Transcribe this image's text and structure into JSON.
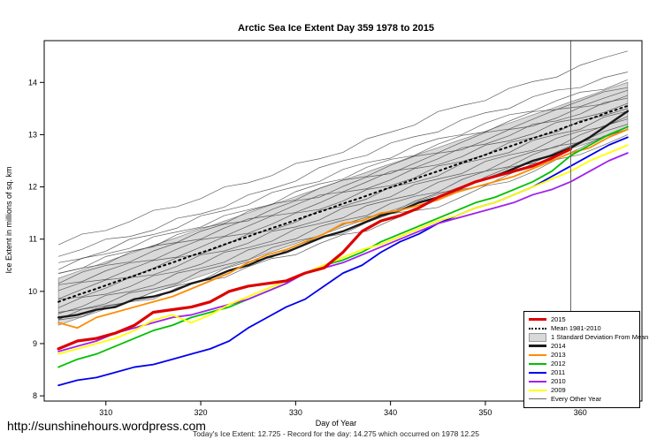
{
  "title": "Arctic Sea Ice Extent Day 359 1978 to 2015",
  "footer": {
    "url": "http://sunshinehours.wordpress.com",
    "caption": "Today's Ice Extent: 12.725  - Record for the day: 14.275 which occurred on 1978 12.25"
  },
  "chart_data": {
    "type": "line",
    "title": "Arctic Sea Ice Extent Day 359 1978 to 2015",
    "xlabel": "Day of Year",
    "ylabel": "Ice Extent in millions of sq. km",
    "xlim": [
      303.5,
      366.5
    ],
    "ylim": [
      7.9,
      14.8
    ],
    "xticks": [
      310,
      320,
      330,
      340,
      350,
      360
    ],
    "yticks": [
      8,
      9,
      10,
      11,
      12,
      13,
      14
    ],
    "marker_day": 359,
    "grid": false,
    "legend_position": "bottom-right-inside",
    "x": [
      305,
      307,
      309,
      311,
      313,
      315,
      317,
      319,
      321,
      323,
      325,
      327,
      329,
      331,
      333,
      335,
      337,
      339,
      341,
      343,
      345,
      347,
      349,
      351,
      353,
      355,
      357,
      359,
      361,
      363,
      365
    ],
    "band": {
      "name": "1 Standard Deviation From Mean",
      "color": "#d9d9d9",
      "upper": [
        10.25,
        10.38,
        10.5,
        10.63,
        10.75,
        10.88,
        11.0,
        11.13,
        11.25,
        11.38,
        11.5,
        11.63,
        11.75,
        11.88,
        12.0,
        12.13,
        12.25,
        12.38,
        12.5,
        12.63,
        12.75,
        12.88,
        13.0,
        13.13,
        13.25,
        13.38,
        13.5,
        13.63,
        13.75,
        13.88,
        14.0
      ],
      "lower": [
        9.35,
        9.48,
        9.6,
        9.73,
        9.85,
        9.98,
        10.1,
        10.23,
        10.35,
        10.48,
        10.6,
        10.73,
        10.85,
        10.98,
        11.1,
        11.23,
        11.35,
        11.48,
        11.6,
        11.73,
        11.85,
        11.98,
        12.1,
        12.23,
        12.35,
        12.48,
        12.6,
        12.73,
        12.85,
        12.98,
        13.1
      ]
    },
    "series": [
      {
        "name": "Mean 1981-2010",
        "color": "#000000",
        "width": 2,
        "dash": "2,4",
        "values": [
          9.8,
          9.93,
          10.05,
          10.18,
          10.3,
          10.43,
          10.55,
          10.68,
          10.8,
          10.93,
          11.05,
          11.18,
          11.3,
          11.43,
          11.55,
          11.68,
          11.8,
          11.93,
          12.05,
          12.18,
          12.3,
          12.43,
          12.55,
          12.68,
          12.8,
          12.93,
          13.05,
          13.18,
          13.3,
          13.43,
          13.55
        ]
      },
      {
        "name": "2014",
        "color": "#1a1a1a",
        "width": 2.4,
        "dash": null,
        "values": [
          9.5,
          9.55,
          9.65,
          9.7,
          9.85,
          9.9,
          10.0,
          10.15,
          10.25,
          10.4,
          10.5,
          10.65,
          10.75,
          10.9,
          11.05,
          11.15,
          11.3,
          11.45,
          11.55,
          11.7,
          11.8,
          11.95,
          12.1,
          12.2,
          12.35,
          12.5,
          12.6,
          12.75,
          12.95,
          13.2,
          13.45
        ]
      },
      {
        "name": "2013",
        "color": "#ff8c00",
        "width": 1.8,
        "dash": null,
        "values": [
          9.4,
          9.3,
          9.5,
          9.6,
          9.7,
          9.8,
          9.9,
          10.05,
          10.2,
          10.35,
          10.55,
          10.7,
          10.8,
          10.95,
          11.1,
          11.3,
          11.35,
          11.5,
          11.55,
          11.65,
          11.75,
          11.9,
          12.0,
          12.1,
          12.2,
          12.35,
          12.5,
          12.65,
          12.75,
          12.95,
          13.1
        ]
      },
      {
        "name": "2012",
        "color": "#00c000",
        "width": 1.8,
        "dash": null,
        "values": [
          8.55,
          8.7,
          8.8,
          8.95,
          9.1,
          9.25,
          9.35,
          9.5,
          9.6,
          9.7,
          9.85,
          10.0,
          10.15,
          10.35,
          10.5,
          10.6,
          10.75,
          10.95,
          11.1,
          11.25,
          11.4,
          11.55,
          11.7,
          11.8,
          11.95,
          12.1,
          12.3,
          12.6,
          12.8,
          13.0,
          13.15
        ]
      },
      {
        "name": "2011",
        "color": "#0000ee",
        "width": 1.8,
        "dash": null,
        "values": [
          8.2,
          8.3,
          8.35,
          8.45,
          8.55,
          8.6,
          8.7,
          8.8,
          8.9,
          9.05,
          9.3,
          9.5,
          9.7,
          9.85,
          10.1,
          10.35,
          10.5,
          10.75,
          10.95,
          11.1,
          11.3,
          11.45,
          11.6,
          11.7,
          11.85,
          12.0,
          12.2,
          12.4,
          12.6,
          12.8,
          12.95
        ]
      },
      {
        "name": "2010",
        "color": "#a020f0",
        "width": 1.8,
        "dash": null,
        "values": [
          8.85,
          8.95,
          9.05,
          9.2,
          9.3,
          9.4,
          9.5,
          9.55,
          9.65,
          9.75,
          9.85,
          10.0,
          10.15,
          10.35,
          10.45,
          10.55,
          10.7,
          10.85,
          11.0,
          11.15,
          11.3,
          11.4,
          11.5,
          11.6,
          11.7,
          11.85,
          11.95,
          12.1,
          12.3,
          12.5,
          12.65
        ]
      },
      {
        "name": "2009",
        "color": "#ffff00",
        "width": 1.8,
        "dash": null,
        "values": [
          8.8,
          8.9,
          9.0,
          9.1,
          9.25,
          9.45,
          9.55,
          9.4,
          9.55,
          9.75,
          9.9,
          10.05,
          10.2,
          10.35,
          10.5,
          10.65,
          10.8,
          10.9,
          11.05,
          11.2,
          11.35,
          11.45,
          11.6,
          11.7,
          11.85,
          12.0,
          12.15,
          12.3,
          12.5,
          12.65,
          12.8
        ]
      },
      {
        "name": "2015",
        "color": "#dd0000",
        "width": 3.2,
        "dash": null,
        "values": [
          8.9,
          9.05,
          9.1,
          9.2,
          9.35,
          9.6,
          9.65,
          9.7,
          9.8,
          10.0,
          10.1,
          10.15,
          10.2,
          10.35,
          10.45,
          10.75,
          11.15,
          11.35,
          11.45,
          11.6,
          11.8,
          11.95,
          12.1,
          12.2,
          12.3,
          12.4,
          12.55,
          12.725,
          null,
          null,
          null
        ]
      }
    ],
    "other_years": {
      "name": "Every Other Year",
      "color": "#444444",
      "x": [
        305,
        315,
        325,
        335,
        345,
        355,
        365
      ],
      "lines": [
        [
          10.9,
          11.5,
          12.1,
          12.7,
          13.4,
          14.0,
          14.6
        ],
        [
          10.7,
          11.2,
          11.8,
          12.5,
          13.1,
          13.7,
          14.2
        ],
        [
          10.5,
          11.1,
          11.7,
          12.3,
          12.9,
          13.5,
          14.05
        ],
        [
          10.45,
          11.0,
          11.55,
          12.2,
          12.8,
          13.4,
          13.9
        ],
        [
          10.35,
          10.9,
          11.5,
          12.1,
          12.7,
          13.3,
          13.85
        ],
        [
          10.3,
          10.85,
          11.4,
          12.0,
          12.6,
          13.2,
          13.75
        ],
        [
          10.2,
          10.75,
          11.35,
          11.95,
          12.55,
          13.15,
          13.7
        ],
        [
          10.1,
          10.65,
          11.25,
          11.85,
          12.45,
          13.05,
          13.6
        ],
        [
          10.0,
          10.55,
          11.15,
          11.75,
          12.35,
          12.95,
          13.5
        ],
        [
          9.9,
          10.45,
          11.05,
          11.65,
          12.25,
          12.85,
          13.45
        ],
        [
          9.8,
          10.35,
          10.95,
          11.55,
          12.15,
          12.75,
          13.35
        ],
        [
          9.7,
          10.25,
          10.85,
          11.45,
          12.05,
          12.65,
          13.3
        ],
        [
          9.6,
          10.15,
          10.75,
          11.35,
          11.95,
          12.6,
          13.2
        ],
        [
          9.55,
          10.05,
          10.65,
          11.25,
          11.85,
          12.5,
          13.15
        ],
        [
          9.5,
          9.95,
          10.55,
          11.15,
          11.75,
          12.4,
          13.1
        ],
        [
          9.45,
          9.9,
          10.45,
          11.05,
          11.65,
          12.3,
          13.0
        ]
      ]
    },
    "legend": [
      {
        "label": "2015",
        "swatch": "line",
        "color": "#dd0000",
        "thick": 3
      },
      {
        "label": "Mean 1981-2010",
        "swatch": "dashed",
        "color": "#000000",
        "thick": 2
      },
      {
        "label": "1 Standard Deviation From Mean",
        "swatch": "band",
        "color": "#d9d9d9",
        "thick": 8
      },
      {
        "label": "2014",
        "swatch": "line",
        "color": "#1a1a1a",
        "thick": 3
      },
      {
        "label": "2013",
        "swatch": "line",
        "color": "#ff8c00",
        "thick": 2
      },
      {
        "label": "2012",
        "swatch": "line",
        "color": "#00c000",
        "thick": 2
      },
      {
        "label": "2011",
        "swatch": "line",
        "color": "#0000ee",
        "thick": 2
      },
      {
        "label": "2010",
        "swatch": "line",
        "color": "#a020f0",
        "thick": 2
      },
      {
        "label": "2009",
        "swatch": "line",
        "color": "#ffff00",
        "thick": 2
      },
      {
        "label": "Every Other Year",
        "swatch": "line",
        "color": "#666666",
        "thick": 1
      }
    ]
  }
}
